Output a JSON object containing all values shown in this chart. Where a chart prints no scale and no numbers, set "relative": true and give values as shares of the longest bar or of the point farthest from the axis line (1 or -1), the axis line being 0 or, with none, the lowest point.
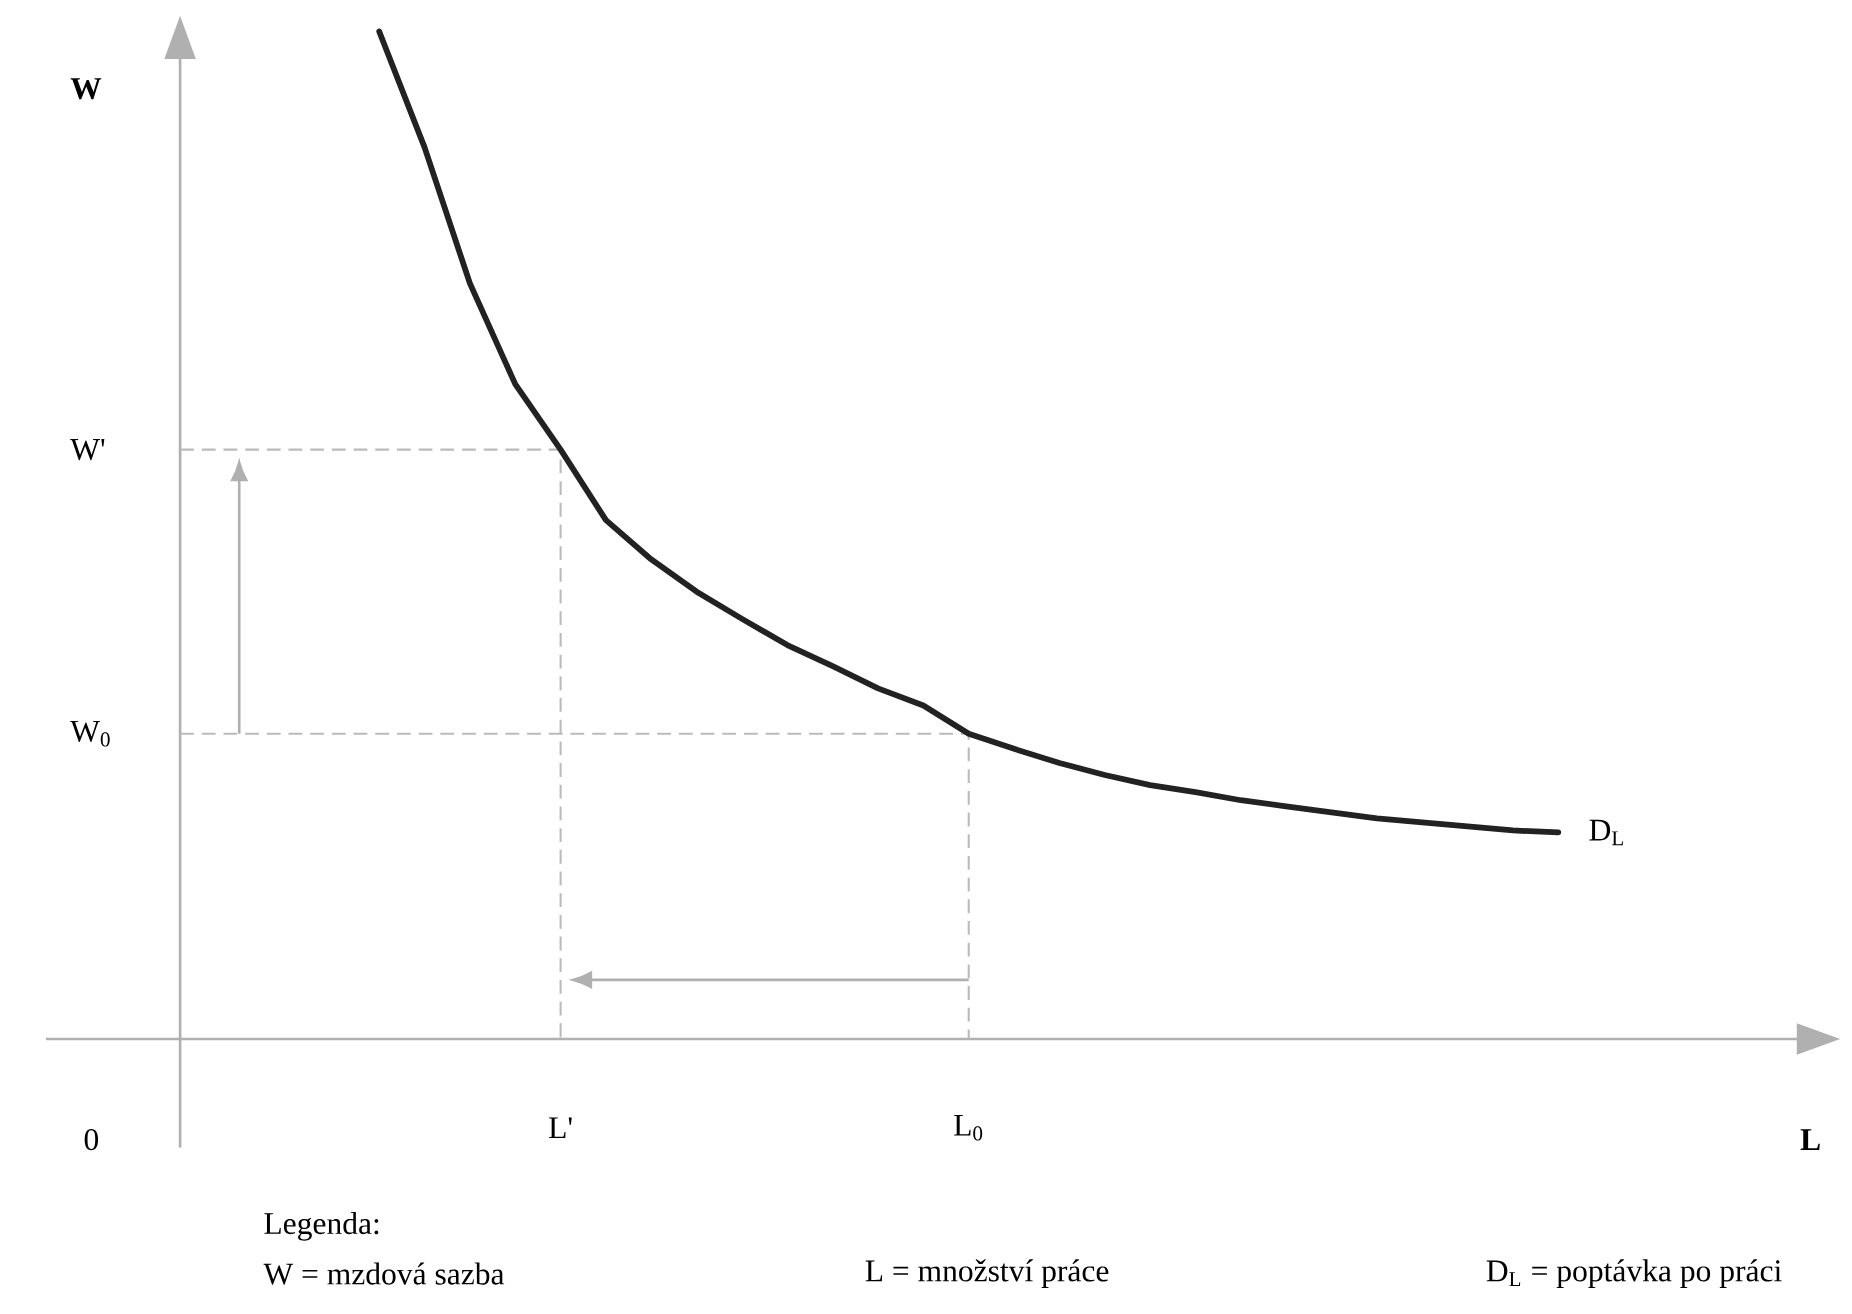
{
  "chart_data": {
    "type": "line",
    "relative": true,
    "categories": [
      null,
      null,
      null,
      null,
      "L'",
      null,
      null,
      null,
      null,
      null,
      null,
      null,
      null,
      "L$_{0}$",
      null,
      null,
      null,
      null,
      null,
      null,
      null,
      null,
      null,
      null,
      null,
      null,
      null
    ],
    "series": [
      {
        "name": "D$_{L}$",
        "color": "#222222",
        "values": [
          1,
          0.885,
          0.75,
          0.65,
          0.585,
          0.515,
          0.476,
          0.444,
          0.417,
          0.391,
          0.37,
          0.348,
          0.331,
          0.303,
          0.288,
          0.274,
          0.262,
          0.252,
          0.245,
          0.237,
          0.231,
          0.225,
          0.219,
          0.215,
          0.211,
          0.207,
          0.205
        ]
      }
    ],
    "ref_lines": [
      {
        "axis": "y",
        "value": 0.585,
        "label": "W'",
        "color": "#bbbbbb",
        "line_style": "dashed"
      },
      {
        "axis": "y",
        "value": 0.303,
        "label": "W$_{0}$",
        "color": "#bbbbbb",
        "line_style": "dashed"
      }
    ],
    "annotations": [
      "**W**",
      "**L**",
      "0",
      "Legenda:",
      "W = mzdová sazba",
      "L  = množství práce",
      "D$_{L}$ = poptávka po práci"
    ],
    "marker": "none",
    "line_style": "solid"
  }
}
